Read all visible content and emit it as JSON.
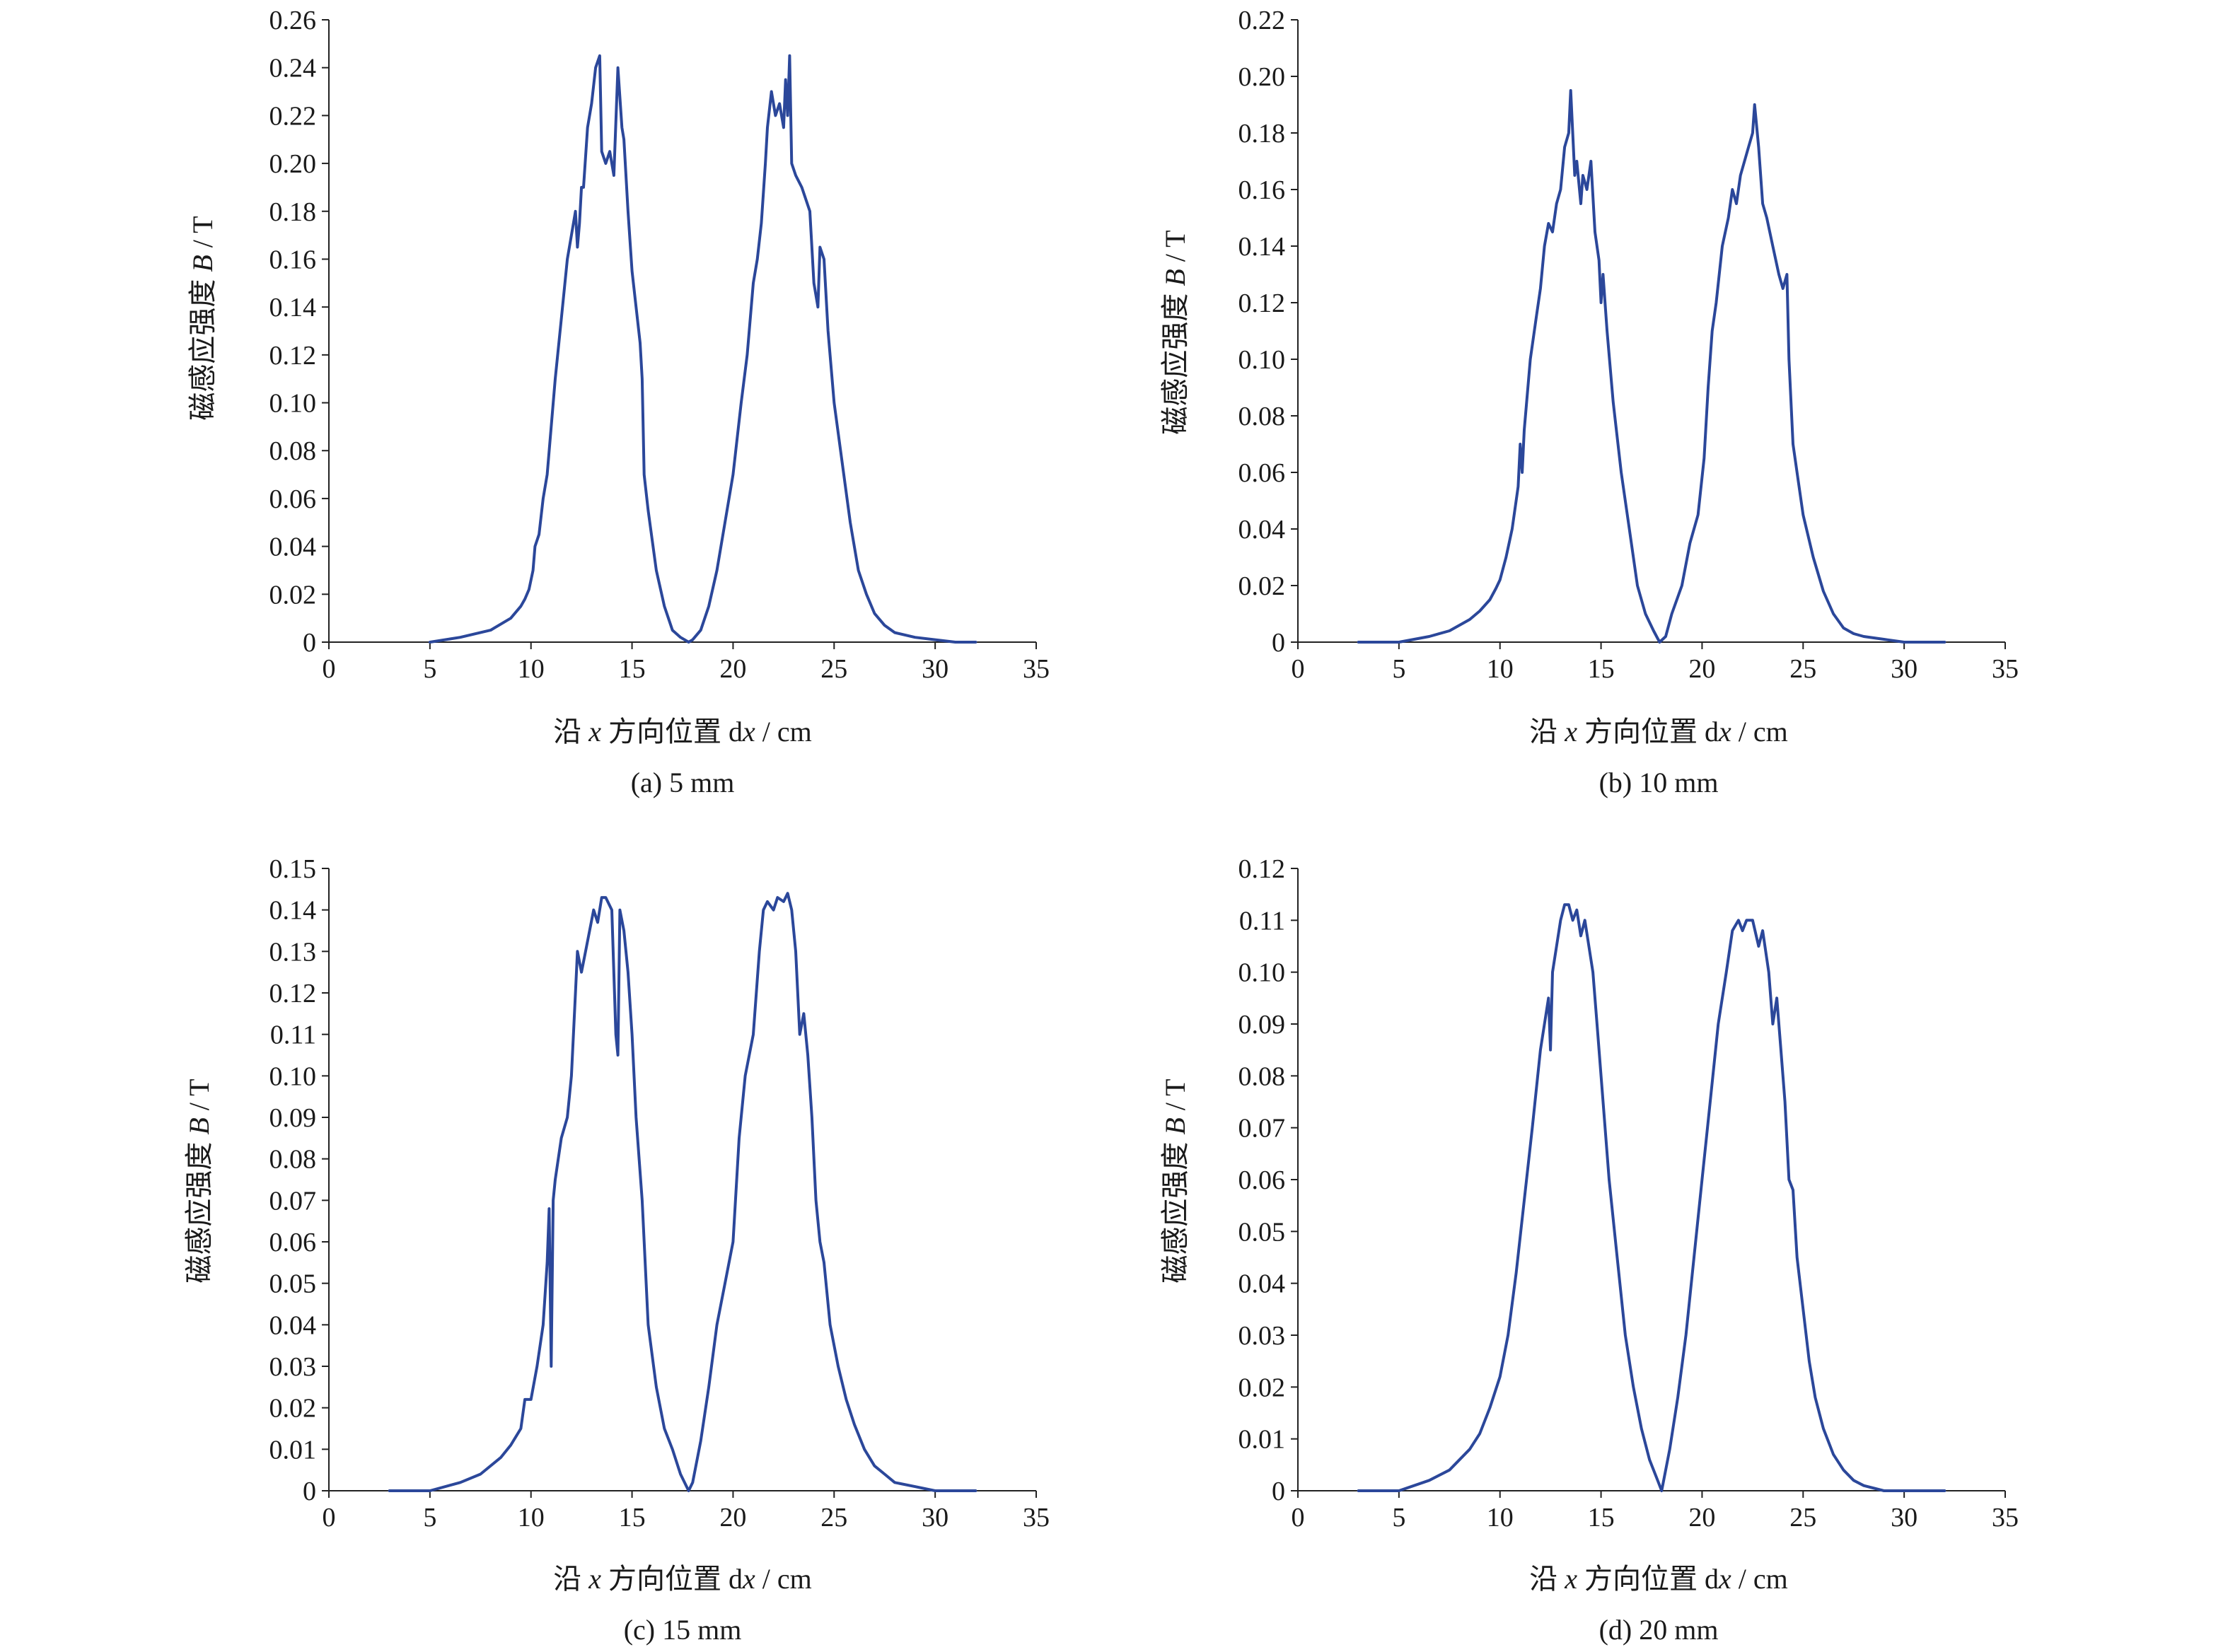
{
  "figure": {
    "ylabel_prefix": "磁感应强度 ",
    "ylabel_var": "B",
    "ylabel_unit": " / T",
    "xlabel_prefix": "沿 ",
    "xlabel_var": "x",
    "xlabel_middle": " 方向位置 d",
    "xlabel_var2": "x",
    "xlabel_unit": " / cm"
  },
  "line_color": "#2b479a",
  "chart_data": [
    {
      "type": "line",
      "caption": "(a) 5 mm",
      "xlim": [
        0,
        35
      ],
      "ylim": [
        0,
        0.26
      ],
      "xticks": [
        "0",
        "5",
        "10",
        "15",
        "20",
        "25",
        "30",
        "35"
      ],
      "yticks": [
        "0",
        "0.02",
        "0.04",
        "0.06",
        "0.08",
        "0.10",
        "0.12",
        "0.14",
        "0.16",
        "0.18",
        "0.20",
        "0.22",
        "0.24",
        "0.26"
      ],
      "grid": false,
      "series": [
        {
          "x": [
            5.0,
            6.5,
            8.0,
            9.0,
            9.5,
            9.7,
            9.9,
            10.1,
            10.2,
            10.4,
            10.6,
            10.8,
            11.0,
            11.2,
            11.5,
            11.8,
            12.0,
            12.2,
            12.3,
            12.4,
            12.5,
            12.6,
            12.8,
            13.0,
            13.2,
            13.4,
            13.5,
            13.7,
            13.9,
            14.1,
            14.3,
            14.5,
            14.6,
            14.8,
            15.0,
            15.2,
            15.4,
            15.5,
            15.6,
            15.8,
            16.2,
            16.6,
            17.0,
            17.4,
            17.8,
            18.0,
            18.4,
            18.8,
            19.2,
            19.6,
            20.0,
            20.4,
            20.7,
            21.0,
            21.2,
            21.4,
            21.6,
            21.7,
            21.9,
            22.1,
            22.3,
            22.5,
            22.6,
            22.7,
            22.8,
            22.9,
            23.1,
            23.4,
            23.8,
            24.0,
            24.2,
            24.3,
            24.5,
            24.7,
            25.0,
            25.4,
            25.8,
            26.2,
            26.6,
            27.0,
            27.5,
            28.0,
            29.0,
            30.0,
            31.0,
            32.0
          ],
          "y": [
            0.0,
            0.002,
            0.005,
            0.01,
            0.015,
            0.018,
            0.022,
            0.03,
            0.04,
            0.045,
            0.06,
            0.07,
            0.09,
            0.11,
            0.135,
            0.16,
            0.17,
            0.18,
            0.165,
            0.175,
            0.19,
            0.19,
            0.215,
            0.225,
            0.24,
            0.245,
            0.205,
            0.2,
            0.205,
            0.195,
            0.24,
            0.215,
            0.21,
            0.18,
            0.155,
            0.14,
            0.125,
            0.11,
            0.07,
            0.055,
            0.03,
            0.015,
            0.005,
            0.002,
            0.0,
            0.001,
            0.005,
            0.015,
            0.03,
            0.05,
            0.07,
            0.1,
            0.12,
            0.15,
            0.16,
            0.175,
            0.2,
            0.215,
            0.23,
            0.22,
            0.225,
            0.215,
            0.235,
            0.22,
            0.245,
            0.2,
            0.195,
            0.19,
            0.18,
            0.15,
            0.14,
            0.165,
            0.16,
            0.13,
            0.1,
            0.075,
            0.05,
            0.03,
            0.02,
            0.012,
            0.007,
            0.004,
            0.002,
            0.001,
            0.0,
            0.0
          ]
        }
      ]
    },
    {
      "type": "line",
      "caption": "(b) 10 mm",
      "xlim": [
        0,
        35
      ],
      "ylim": [
        0,
        0.22
      ],
      "xticks": [
        "0",
        "5",
        "10",
        "15",
        "20",
        "25",
        "30",
        "35"
      ],
      "yticks": [
        "0",
        "0.02",
        "0.04",
        "0.06",
        "0.08",
        "0.10",
        "0.12",
        "0.14",
        "0.16",
        "0.18",
        "0.20",
        "0.22"
      ],
      "grid": false,
      "series": [
        {
          "x": [
            3.0,
            5.0,
            6.5,
            7.5,
            8.5,
            9.0,
            9.5,
            9.8,
            10.0,
            10.3,
            10.6,
            10.9,
            11.0,
            11.1,
            11.2,
            11.5,
            11.8,
            12.0,
            12.2,
            12.4,
            12.6,
            12.8,
            13.0,
            13.2,
            13.4,
            13.5,
            13.7,
            13.8,
            14.0,
            14.1,
            14.3,
            14.5,
            14.7,
            14.9,
            15.0,
            15.1,
            15.3,
            15.6,
            16.0,
            16.4,
            16.8,
            17.2,
            17.6,
            17.9,
            18.2,
            18.5,
            19.0,
            19.4,
            19.8,
            20.1,
            20.3,
            20.5,
            20.7,
            21.0,
            21.3,
            21.5,
            21.7,
            21.9,
            22.1,
            22.3,
            22.5,
            22.6,
            22.8,
            23.0,
            23.2,
            23.5,
            23.8,
            24.0,
            24.2,
            24.3,
            24.5,
            24.7,
            25.0,
            25.5,
            26.0,
            26.5,
            27.0,
            27.5,
            28.0,
            29.0,
            30.0,
            32.0
          ],
          "y": [
            0.0,
            0.0,
            0.002,
            0.004,
            0.008,
            0.011,
            0.015,
            0.019,
            0.022,
            0.03,
            0.04,
            0.055,
            0.07,
            0.06,
            0.075,
            0.1,
            0.115,
            0.125,
            0.14,
            0.148,
            0.145,
            0.155,
            0.16,
            0.175,
            0.18,
            0.195,
            0.165,
            0.17,
            0.155,
            0.165,
            0.16,
            0.17,
            0.145,
            0.135,
            0.12,
            0.13,
            0.11,
            0.085,
            0.06,
            0.04,
            0.02,
            0.01,
            0.004,
            0.0,
            0.002,
            0.01,
            0.02,
            0.035,
            0.045,
            0.065,
            0.09,
            0.11,
            0.12,
            0.14,
            0.15,
            0.16,
            0.155,
            0.165,
            0.17,
            0.175,
            0.18,
            0.19,
            0.175,
            0.155,
            0.15,
            0.14,
            0.13,
            0.125,
            0.13,
            0.1,
            0.07,
            0.06,
            0.045,
            0.03,
            0.018,
            0.01,
            0.005,
            0.003,
            0.002,
            0.001,
            0.0,
            0.0
          ]
        }
      ]
    },
    {
      "type": "line",
      "caption": "(c) 15 mm",
      "xlim": [
        0,
        35
      ],
      "ylim": [
        0,
        0.15
      ],
      "xticks": [
        "0",
        "5",
        "10",
        "15",
        "20",
        "25",
        "30",
        "35"
      ],
      "yticks": [
        "0",
        "0.01",
        "0.02",
        "0.03",
        "0.04",
        "0.05",
        "0.06",
        "0.07",
        "0.08",
        "0.09",
        "0.10",
        "0.11",
        "0.12",
        "0.13",
        "0.14",
        "0.15"
      ],
      "grid": false,
      "series": [
        {
          "x": [
            3.0,
            5.0,
            6.5,
            7.5,
            8.5,
            9.0,
            9.5,
            9.7,
            10.0,
            10.3,
            10.6,
            10.8,
            10.9,
            11.0,
            11.1,
            11.2,
            11.5,
            11.8,
            12.0,
            12.2,
            12.3,
            12.5,
            12.7,
            12.9,
            13.1,
            13.3,
            13.5,
            13.7,
            14.0,
            14.2,
            14.3,
            14.4,
            14.6,
            14.8,
            15.0,
            15.2,
            15.5,
            15.8,
            16.2,
            16.6,
            17.0,
            17.4,
            17.8,
            18.0,
            18.4,
            18.8,
            19.2,
            19.6,
            20.0,
            20.3,
            20.6,
            21.0,
            21.3,
            21.5,
            21.7,
            22.0,
            22.2,
            22.5,
            22.7,
            22.9,
            23.1,
            23.3,
            23.5,
            23.7,
            23.9,
            24.1,
            24.3,
            24.5,
            24.8,
            25.2,
            25.6,
            26.0,
            26.5,
            27.0,
            27.5,
            28.0,
            29.0,
            30.0,
            32.0
          ],
          "y": [
            0.0,
            0.0,
            0.002,
            0.004,
            0.008,
            0.011,
            0.015,
            0.022,
            0.022,
            0.03,
            0.04,
            0.055,
            0.068,
            0.03,
            0.07,
            0.075,
            0.085,
            0.09,
            0.1,
            0.12,
            0.13,
            0.125,
            0.13,
            0.135,
            0.14,
            0.137,
            0.143,
            0.143,
            0.14,
            0.11,
            0.105,
            0.14,
            0.135,
            0.125,
            0.11,
            0.09,
            0.07,
            0.04,
            0.025,
            0.015,
            0.01,
            0.004,
            0.0,
            0.002,
            0.012,
            0.025,
            0.04,
            0.05,
            0.06,
            0.085,
            0.1,
            0.11,
            0.13,
            0.14,
            0.142,
            0.14,
            0.143,
            0.142,
            0.144,
            0.14,
            0.13,
            0.11,
            0.115,
            0.105,
            0.09,
            0.07,
            0.06,
            0.055,
            0.04,
            0.03,
            0.022,
            0.016,
            0.01,
            0.006,
            0.004,
            0.002,
            0.001,
            0.0,
            0.0
          ]
        }
      ]
    },
    {
      "type": "line",
      "caption": "(d) 20 mm",
      "xlim": [
        0,
        35
      ],
      "ylim": [
        0,
        0.12
      ],
      "xticks": [
        "0",
        "5",
        "10",
        "15",
        "20",
        "25",
        "30",
        "35"
      ],
      "yticks": [
        "0",
        "0.01",
        "0.02",
        "0.03",
        "0.04",
        "0.05",
        "0.06",
        "0.07",
        "0.08",
        "0.09",
        "0.10",
        "0.11",
        "0.12"
      ],
      "grid": false,
      "series": [
        {
          "x": [
            3.0,
            5.0,
            6.5,
            7.5,
            8.5,
            9.0,
            9.5,
            10.0,
            10.4,
            10.8,
            11.2,
            11.6,
            12.0,
            12.2,
            12.4,
            12.5,
            12.6,
            12.8,
            13.0,
            13.2,
            13.4,
            13.6,
            13.8,
            14.0,
            14.2,
            14.4,
            14.6,
            14.8,
            15.0,
            15.4,
            15.8,
            16.2,
            16.6,
            17.0,
            17.4,
            17.8,
            18.0,
            18.4,
            18.8,
            19.2,
            19.6,
            20.0,
            20.4,
            20.8,
            21.2,
            21.5,
            21.8,
            22.0,
            22.2,
            22.5,
            22.8,
            23.0,
            23.3,
            23.5,
            23.7,
            23.9,
            24.1,
            24.3,
            24.5,
            24.7,
            25.0,
            25.3,
            25.6,
            26.0,
            26.5,
            27.0,
            27.5,
            28.0,
            29.0,
            30.0,
            31.0,
            32.0
          ],
          "y": [
            0.0,
            0.0,
            0.002,
            0.004,
            0.008,
            0.011,
            0.016,
            0.022,
            0.03,
            0.042,
            0.056,
            0.07,
            0.085,
            0.09,
            0.095,
            0.085,
            0.1,
            0.105,
            0.11,
            0.113,
            0.113,
            0.11,
            0.112,
            0.107,
            0.11,
            0.105,
            0.1,
            0.09,
            0.08,
            0.06,
            0.045,
            0.03,
            0.02,
            0.012,
            0.006,
            0.002,
            0.0,
            0.008,
            0.018,
            0.03,
            0.045,
            0.06,
            0.075,
            0.09,
            0.1,
            0.108,
            0.11,
            0.108,
            0.11,
            0.11,
            0.105,
            0.108,
            0.1,
            0.09,
            0.095,
            0.085,
            0.075,
            0.06,
            0.058,
            0.045,
            0.035,
            0.025,
            0.018,
            0.012,
            0.007,
            0.004,
            0.002,
            0.001,
            0.0,
            0.0,
            0.0,
            0.0
          ]
        }
      ]
    }
  ]
}
